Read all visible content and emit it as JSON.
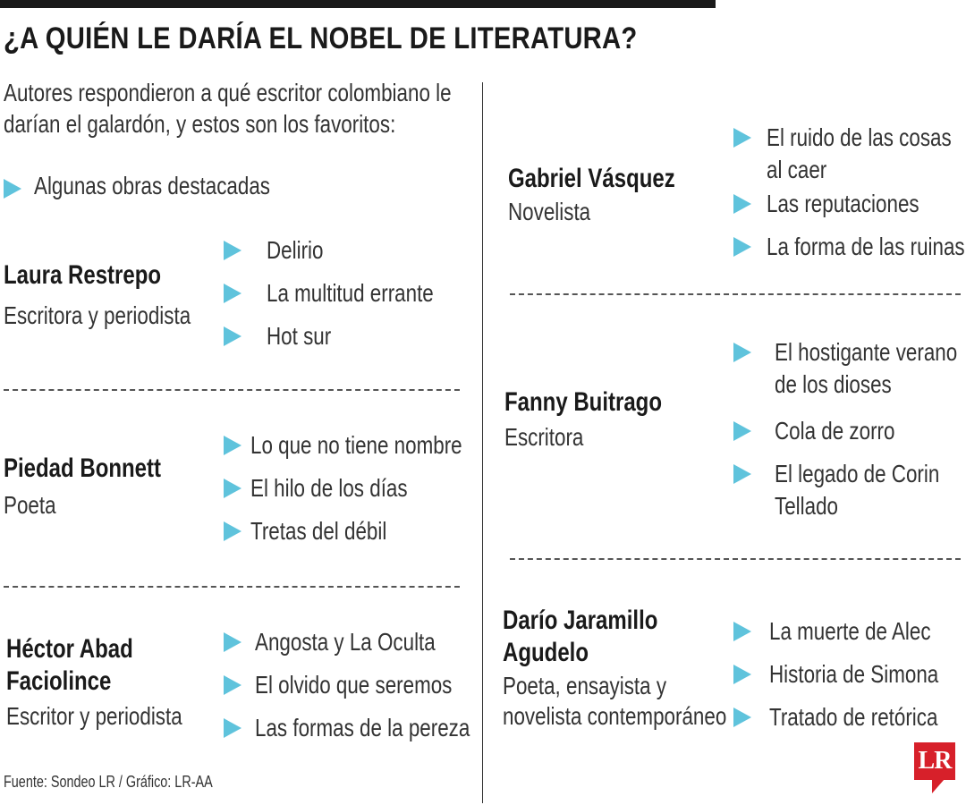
{
  "title": "¿A QUIÉN LE DARÍA EL NOBEL DE LITERATURA?",
  "intro": [
    "Autores respondieron a qué escritor  colombiano le",
    "darían el galardón, y estos son los favoritos:"
  ],
  "legend": "Algunas obras destacadas",
  "accent_color": "#5fc3dc",
  "authors": [
    {
      "name": [
        "Laura Restrepo"
      ],
      "role": [
        "Escritora  y periodista"
      ],
      "works": [
        [
          "Delirio"
        ],
        [
          "La multitud errante"
        ],
        [
          "Hot sur"
        ]
      ]
    },
    {
      "name": [
        "Piedad Bonnett"
      ],
      "role": [
        "Poeta"
      ],
      "works": [
        [
          "Lo que no tiene nombre"
        ],
        [
          "El hilo de los días"
        ],
        [
          "Tretas del débil"
        ]
      ]
    },
    {
      "name": [
        "Héctor Abad",
        "Faciolince"
      ],
      "role": [
        "Escritor  y periodista"
      ],
      "works": [
        [
          "Angosta y La Oculta"
        ],
        [
          "El olvido que seremos"
        ],
        [
          "Las formas de la pereza"
        ]
      ]
    },
    {
      "name": [
        "Gabriel Vásquez"
      ],
      "role": [
        "Novelista"
      ],
      "works": [
        [
          "El ruido de las cosas",
          "al caer"
        ],
        [
          "Las reputaciones"
        ],
        [
          "La forma de las ruinas"
        ]
      ]
    },
    {
      "name": [
        "Fanny Buitrago"
      ],
      "role": [
        "Escritora"
      ],
      "works": [
        [
          "El hostigante verano",
          "de los dioses"
        ],
        [
          "Cola de zorro"
        ],
        [
          "El legado de Corin",
          "Tellado"
        ]
      ]
    },
    {
      "name": [
        "Darío Jaramillo",
        "Agudelo"
      ],
      "role": [
        "Poeta, ensayista y",
        "novelista contemporáneo"
      ],
      "works": [
        [
          "La muerte de Alec"
        ],
        [
          "Historia de Simona"
        ],
        [
          "Tratado de retórica"
        ]
      ]
    }
  ],
  "source": "Fuente: Sondeo LR / Gráfico: LR-AA",
  "logo": "LR",
  "logo_color": "#d7202a"
}
